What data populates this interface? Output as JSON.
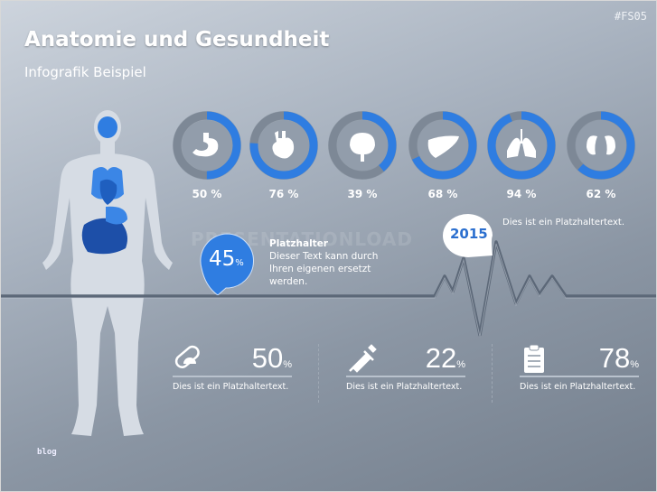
{
  "header": {
    "title": "Anatomie und Gesundheit",
    "subtitle": "Infografik Beispiel",
    "tag": "#FS05"
  },
  "watermark": "PRESENTATIONLOAD",
  "colors": {
    "accent": "#2f7de1",
    "ring_bg": "#7d8896",
    "body": "#d6dce4"
  },
  "organs": [
    {
      "icon": "stomach-icon",
      "value": 50,
      "label": "50 %"
    },
    {
      "icon": "heart-icon",
      "value": 76,
      "label": "76 %"
    },
    {
      "icon": "brain-icon",
      "value": 39,
      "label": "39 %"
    },
    {
      "icon": "liver-icon",
      "value": 68,
      "label": "68 %"
    },
    {
      "icon": "lungs-icon",
      "value": 94,
      "label": "94 %"
    },
    {
      "icon": "kidneys-icon",
      "value": 62,
      "label": "62 %"
    }
  ],
  "callout": {
    "value": "45",
    "unit": "%",
    "title": "Platzhalter",
    "text1": "Dieser Text kann durch",
    "text2": "Ihren eigenen ersetzt",
    "text3": "werden."
  },
  "year": {
    "label": "2015",
    "text": "Dies ist ein Platzhaltertext."
  },
  "stats": [
    {
      "icon": "pill-icon",
      "value": "50",
      "unit": "%",
      "text": "Dies ist ein Platzhaltertext."
    },
    {
      "icon": "syringe-icon",
      "value": "22",
      "unit": "%",
      "text": "Dies ist ein Platzhaltertext."
    },
    {
      "icon": "clipboard-icon",
      "value": "78",
      "unit": "%",
      "text": "Dies ist ein Platzhaltertext."
    }
  ],
  "footer_logo": "blog"
}
